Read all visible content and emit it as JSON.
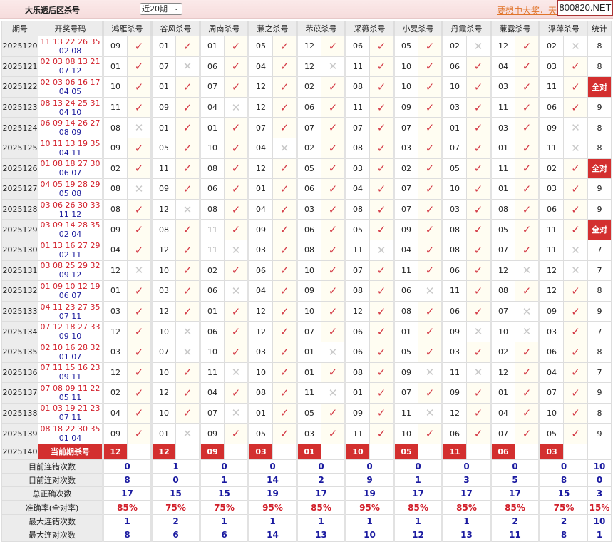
{
  "header": {
    "title": "大乐透后区杀号",
    "range_select": "近20期",
    "promo_link": "要想中大奖，天",
    "site_badge": "800820.NET"
  },
  "colors": {
    "accent": "#d32f2f",
    "hit": "#d43a45",
    "miss": "#c8c8c8",
    "red_ball": "#d21f2a",
    "blue_ball": "#1a1a9c",
    "stat_value": "#1a1aa0"
  },
  "icons": {
    "hit": "check-icon",
    "miss": "cross-icon"
  },
  "columns": {
    "period": "期号",
    "draw": "开奖号码",
    "stat": "统计",
    "experts": [
      "鸿雁杀号",
      "谷风杀号",
      "周南杀号",
      "蒹之杀号",
      "芣苡杀号",
      "采薇杀号",
      "小旻杀号",
      "丹霞杀号",
      "蒹露杀号",
      "浮萍杀号"
    ]
  },
  "hit_mark": "✓",
  "miss_mark": "✕",
  "rows": [
    {
      "period": "2025120",
      "red": "11 13 22 26 35",
      "blue": "02 08",
      "picks": [
        [
          "09",
          1
        ],
        [
          "01",
          1
        ],
        [
          "01",
          1
        ],
        [
          "05",
          1
        ],
        [
          "12",
          1
        ],
        [
          "06",
          1
        ],
        [
          "05",
          1
        ],
        [
          "02",
          0
        ],
        [
          "12",
          1
        ],
        [
          "02",
          0
        ]
      ],
      "stat": "8"
    },
    {
      "period": "2025121",
      "red": "02 03 08 13 21",
      "blue": "07 12",
      "picks": [
        [
          "01",
          1
        ],
        [
          "07",
          0
        ],
        [
          "06",
          1
        ],
        [
          "04",
          1
        ],
        [
          "12",
          0
        ],
        [
          "11",
          1
        ],
        [
          "10",
          1
        ],
        [
          "06",
          1
        ],
        [
          "04",
          1
        ],
        [
          "03",
          1
        ]
      ],
      "stat": "8"
    },
    {
      "period": "2025122",
      "red": "02 03 06 16 17",
      "blue": "04 05",
      "picks": [
        [
          "10",
          1
        ],
        [
          "01",
          1
        ],
        [
          "07",
          1
        ],
        [
          "12",
          1
        ],
        [
          "02",
          1
        ],
        [
          "08",
          1
        ],
        [
          "10",
          1
        ],
        [
          "10",
          1
        ],
        [
          "03",
          1
        ],
        [
          "11",
          1
        ]
      ],
      "stat": "全对"
    },
    {
      "period": "2025123",
      "red": "08 13 24 25 31",
      "blue": "04 10",
      "picks": [
        [
          "11",
          1
        ],
        [
          "09",
          1
        ],
        [
          "04",
          0
        ],
        [
          "12",
          1
        ],
        [
          "06",
          1
        ],
        [
          "11",
          1
        ],
        [
          "09",
          1
        ],
        [
          "03",
          1
        ],
        [
          "11",
          1
        ],
        [
          "06",
          1
        ]
      ],
      "stat": "9"
    },
    {
      "period": "2025124",
      "red": "06 09 14 26 27",
      "blue": "08 09",
      "picks": [
        [
          "08",
          0
        ],
        [
          "01",
          1
        ],
        [
          "01",
          1
        ],
        [
          "07",
          1
        ],
        [
          "07",
          1
        ],
        [
          "07",
          1
        ],
        [
          "07",
          1
        ],
        [
          "01",
          1
        ],
        [
          "03",
          1
        ],
        [
          "09",
          0
        ]
      ],
      "stat": "8"
    },
    {
      "period": "2025125",
      "red": "10 11 13 19 35",
      "blue": "04 11",
      "picks": [
        [
          "09",
          1
        ],
        [
          "05",
          1
        ],
        [
          "10",
          1
        ],
        [
          "04",
          0
        ],
        [
          "02",
          1
        ],
        [
          "08",
          1
        ],
        [
          "03",
          1
        ],
        [
          "07",
          1
        ],
        [
          "01",
          1
        ],
        [
          "11",
          0
        ]
      ],
      "stat": "8"
    },
    {
      "period": "2025126",
      "red": "01 08 18 27 30",
      "blue": "06 07",
      "picks": [
        [
          "02",
          1
        ],
        [
          "11",
          1
        ],
        [
          "08",
          1
        ],
        [
          "12",
          1
        ],
        [
          "05",
          1
        ],
        [
          "03",
          1
        ],
        [
          "02",
          1
        ],
        [
          "05",
          1
        ],
        [
          "11",
          1
        ],
        [
          "02",
          1
        ]
      ],
      "stat": "全对"
    },
    {
      "period": "2025127",
      "red": "04 05 19 28 29",
      "blue": "05 08",
      "picks": [
        [
          "08",
          0
        ],
        [
          "09",
          1
        ],
        [
          "06",
          1
        ],
        [
          "01",
          1
        ],
        [
          "06",
          1
        ],
        [
          "04",
          1
        ],
        [
          "07",
          1
        ],
        [
          "10",
          1
        ],
        [
          "01",
          1
        ],
        [
          "03",
          1
        ]
      ],
      "stat": "9"
    },
    {
      "period": "2025128",
      "red": "03 06 26 30 33",
      "blue": "11 12",
      "picks": [
        [
          "08",
          1
        ],
        [
          "12",
          0
        ],
        [
          "08",
          1
        ],
        [
          "04",
          1
        ],
        [
          "03",
          1
        ],
        [
          "08",
          1
        ],
        [
          "07",
          1
        ],
        [
          "03",
          1
        ],
        [
          "08",
          1
        ],
        [
          "06",
          1
        ]
      ],
      "stat": "9"
    },
    {
      "period": "2025129",
      "red": "03 09 14 28 35",
      "blue": "02 04",
      "picks": [
        [
          "09",
          1
        ],
        [
          "08",
          1
        ],
        [
          "11",
          1
        ],
        [
          "09",
          1
        ],
        [
          "06",
          1
        ],
        [
          "05",
          1
        ],
        [
          "09",
          1
        ],
        [
          "08",
          1
        ],
        [
          "05",
          1
        ],
        [
          "11",
          1
        ]
      ],
      "stat": "全对"
    },
    {
      "period": "2025130",
      "red": "01 13 16 27 29",
      "blue": "02 11",
      "picks": [
        [
          "04",
          1
        ],
        [
          "12",
          1
        ],
        [
          "11",
          0
        ],
        [
          "03",
          1
        ],
        [
          "08",
          1
        ],
        [
          "11",
          0
        ],
        [
          "04",
          1
        ],
        [
          "08",
          1
        ],
        [
          "07",
          1
        ],
        [
          "11",
          0
        ]
      ],
      "stat": "7"
    },
    {
      "period": "2025131",
      "red": "03 08 25 29 32",
      "blue": "09 12",
      "picks": [
        [
          "12",
          0
        ],
        [
          "10",
          1
        ],
        [
          "02",
          1
        ],
        [
          "06",
          1
        ],
        [
          "10",
          1
        ],
        [
          "07",
          1
        ],
        [
          "11",
          1
        ],
        [
          "06",
          1
        ],
        [
          "12",
          0
        ],
        [
          "12",
          0
        ]
      ],
      "stat": "7"
    },
    {
      "period": "2025132",
      "red": "01 09 10 12 19",
      "blue": "06 07",
      "picks": [
        [
          "01",
          1
        ],
        [
          "03",
          1
        ],
        [
          "06",
          0
        ],
        [
          "04",
          1
        ],
        [
          "09",
          1
        ],
        [
          "08",
          1
        ],
        [
          "06",
          0
        ],
        [
          "11",
          1
        ],
        [
          "08",
          1
        ],
        [
          "12",
          1
        ]
      ],
      "stat": "8"
    },
    {
      "period": "2025133",
      "red": "04 11 23 27 35",
      "blue": "07 11",
      "picks": [
        [
          "03",
          1
        ],
        [
          "12",
          1
        ],
        [
          "01",
          1
        ],
        [
          "12",
          1
        ],
        [
          "10",
          1
        ],
        [
          "12",
          1
        ],
        [
          "08",
          1
        ],
        [
          "06",
          1
        ],
        [
          "07",
          0
        ],
        [
          "09",
          1
        ]
      ],
      "stat": "9"
    },
    {
      "period": "2025134",
      "red": "07 12 18 27 33",
      "blue": "09 10",
      "picks": [
        [
          "12",
          1
        ],
        [
          "10",
          0
        ],
        [
          "06",
          1
        ],
        [
          "12",
          1
        ],
        [
          "07",
          1
        ],
        [
          "06",
          1
        ],
        [
          "01",
          1
        ],
        [
          "09",
          0
        ],
        [
          "10",
          0
        ],
        [
          "03",
          1
        ]
      ],
      "stat": "7"
    },
    {
      "period": "2025135",
      "red": "02 10 16 28 32",
      "blue": "01 07",
      "picks": [
        [
          "03",
          1
        ],
        [
          "07",
          0
        ],
        [
          "10",
          1
        ],
        [
          "03",
          1
        ],
        [
          "01",
          0
        ],
        [
          "06",
          1
        ],
        [
          "05",
          1
        ],
        [
          "03",
          1
        ],
        [
          "02",
          1
        ],
        [
          "06",
          1
        ]
      ],
      "stat": "8"
    },
    {
      "period": "2025136",
      "red": "07 11 15 16 23",
      "blue": "09 11",
      "picks": [
        [
          "12",
          1
        ],
        [
          "10",
          1
        ],
        [
          "11",
          0
        ],
        [
          "10",
          1
        ],
        [
          "01",
          1
        ],
        [
          "08",
          1
        ],
        [
          "09",
          0
        ],
        [
          "11",
          0
        ],
        [
          "12",
          1
        ],
        [
          "04",
          1
        ]
      ],
      "stat": "7"
    },
    {
      "period": "2025137",
      "red": "07 08 09 11 22",
      "blue": "05 11",
      "picks": [
        [
          "02",
          1
        ],
        [
          "12",
          1
        ],
        [
          "04",
          1
        ],
        [
          "08",
          1
        ],
        [
          "11",
          0
        ],
        [
          "01",
          1
        ],
        [
          "07",
          1
        ],
        [
          "09",
          1
        ],
        [
          "01",
          1
        ],
        [
          "07",
          1
        ]
      ],
      "stat": "9"
    },
    {
      "period": "2025138",
      "red": "01 03 19 21 23",
      "blue": "07 11",
      "picks": [
        [
          "04",
          1
        ],
        [
          "10",
          1
        ],
        [
          "07",
          0
        ],
        [
          "01",
          1
        ],
        [
          "05",
          1
        ],
        [
          "09",
          1
        ],
        [
          "11",
          0
        ],
        [
          "12",
          1
        ],
        [
          "04",
          1
        ],
        [
          "10",
          1
        ]
      ],
      "stat": "8"
    },
    {
      "period": "2025139",
      "red": "08 18 22 30 35",
      "blue": "01 04",
      "picks": [
        [
          "09",
          1
        ],
        [
          "01",
          0
        ],
        [
          "09",
          1
        ],
        [
          "05",
          1
        ],
        [
          "03",
          1
        ],
        [
          "11",
          1
        ],
        [
          "10",
          1
        ],
        [
          "06",
          1
        ],
        [
          "07",
          1
        ],
        [
          "05",
          1
        ]
      ],
      "stat": "9"
    }
  ],
  "current": {
    "period": "2025140",
    "label": "当前期杀号",
    "picks": [
      "12",
      "12",
      "09",
      "03",
      "01",
      "10",
      "05",
      "11",
      "06",
      "03"
    ]
  },
  "stats": [
    {
      "label": "目前连错次数",
      "values": [
        "0",
        "1",
        "0",
        "0",
        "0",
        "0",
        "0",
        "0",
        "0",
        "0"
      ],
      "total": "10"
    },
    {
      "label": "目前连对次数",
      "values": [
        "8",
        "0",
        "1",
        "14",
        "2",
        "9",
        "1",
        "3",
        "5",
        "8"
      ],
      "total": "0"
    },
    {
      "label": "总正确次数",
      "values": [
        "17",
        "15",
        "15",
        "19",
        "17",
        "19",
        "17",
        "17",
        "17",
        "15"
      ],
      "total": "3"
    },
    {
      "label": "准确率(全对率)",
      "values": [
        "85%",
        "75%",
        "75%",
        "95%",
        "85%",
        "95%",
        "85%",
        "85%",
        "85%",
        "75%"
      ],
      "total": "15%"
    },
    {
      "label": "最大连错次数",
      "values": [
        "1",
        "2",
        "1",
        "1",
        "1",
        "1",
        "1",
        "1",
        "2",
        "2"
      ],
      "total": "10"
    },
    {
      "label": "最大连对次数",
      "values": [
        "8",
        "6",
        "6",
        "14",
        "13",
        "10",
        "12",
        "13",
        "11",
        "8"
      ],
      "total": "1"
    }
  ]
}
